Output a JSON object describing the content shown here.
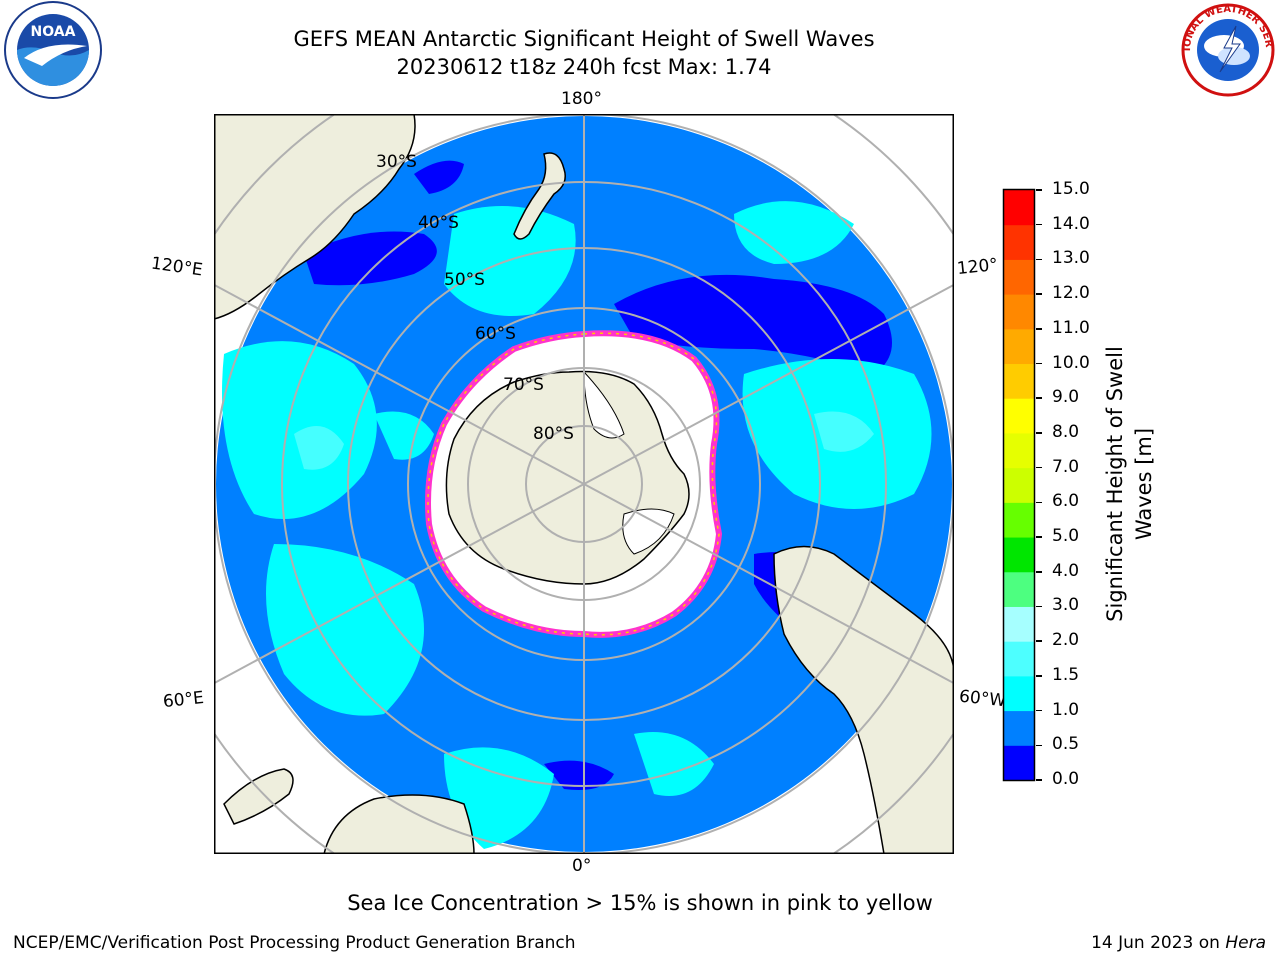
{
  "title": {
    "line1": "GEFS MEAN Antarctic Significant Height of Swell Waves",
    "line2": "20230612 t18z 240h fcst   Max: 1.74"
  },
  "logos": {
    "left": {
      "text": "NOAA",
      "ring_text": "NATIONAL OCEANIC AND ATMOSPHERIC ADMINISTRATION · U.S. DEPARTMENT OF COMMERCE"
    },
    "right": {
      "ring_text": "NATIONAL WEATHER SERVICE"
    }
  },
  "map": {
    "projection": "south-polar-stereographic",
    "meridian_labels": {
      "top": "180°",
      "bottom": "0°",
      "upper_left": "120°E",
      "upper_right": "120°",
      "lower_left": "60°E",
      "lower_right": "60°W"
    },
    "parallel_labels": [
      "30°S",
      "40°S",
      "50°S",
      "60°S",
      "70°S",
      "80°S"
    ],
    "colors": {
      "land": "#eeeedd",
      "ice": "#ffffff",
      "sea_low": "#0000ff",
      "sea_mid": "#0080ff",
      "sea_high": "#00ffff",
      "ice_edge": "#ff33cc"
    }
  },
  "colorbar": {
    "label": "Significant Height of Swell Waves [m]",
    "ticks": [
      "0.0",
      "0.5",
      "1.0",
      "1.5",
      "2.0",
      "3.0",
      "4.0",
      "5.0",
      "6.0",
      "7.0",
      "8.0",
      "9.0",
      "10.0",
      "11.0",
      "12.0",
      "13.0",
      "14.0",
      "15.0"
    ],
    "colors": [
      "#0000ff",
      "#0080ff",
      "#00ffff",
      "#4dffff",
      "#a6ffff",
      "#4dff80",
      "#00e600",
      "#66ff00",
      "#ccff00",
      "#e6ff00",
      "#ffff00",
      "#ffcc00",
      "#ffaa00",
      "#ff8800",
      "#ff6600",
      "#ff3300",
      "#ff0000"
    ]
  },
  "note": "Sea Ice Concentration > 15% is shown in pink to yellow",
  "footer": {
    "left": "NCEP/EMC/Verification Post Processing Product Generation Branch",
    "right_prefix": "14 Jun 2023 on ",
    "right_host": "Hera"
  }
}
